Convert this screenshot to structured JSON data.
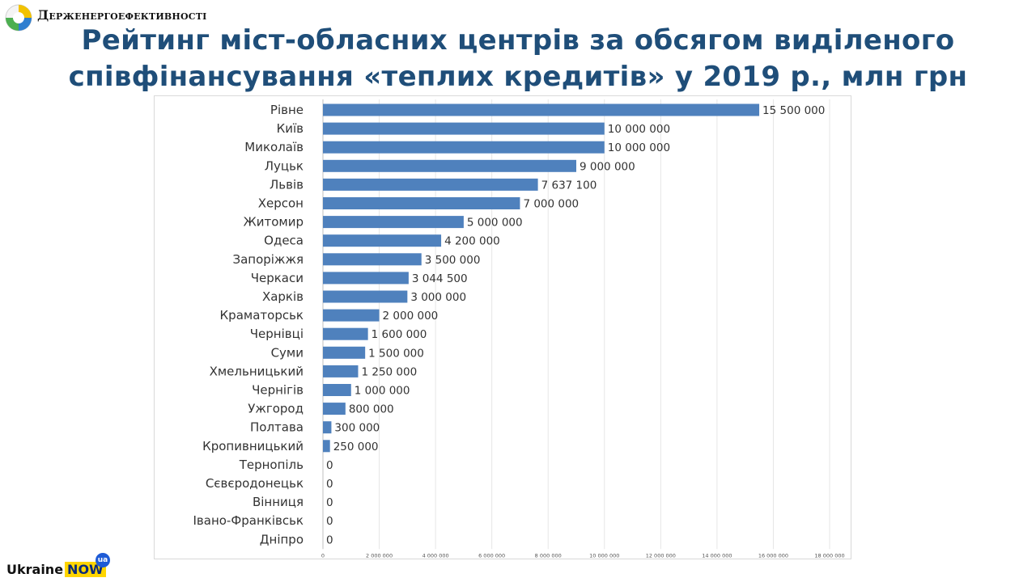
{
  "header": {
    "org_name": "Держенергоефективності",
    "title_line1": "Рейтинг міст-обласних центрів за обсягом виділеного",
    "title_line2": "співфінансування «теплих кредитів» у 2019 р., млн грн"
  },
  "footer": {
    "brand_text": "Ukraine",
    "brand_highlight": "NOW",
    "brand_badge": "ua"
  },
  "colors": {
    "title": "#1f4e79",
    "bar": "#4f81bd",
    "grid": "#e6e6e6"
  },
  "chart_data": {
    "type": "bar",
    "orientation": "horizontal",
    "title": "",
    "xlabel": "",
    "ylabel": "",
    "xlim": [
      0,
      18000000
    ],
    "grid": true,
    "categories": [
      "Рівне",
      "Київ",
      "Миколаїв",
      "Луцьк",
      "Львів",
      "Херсон",
      "Житомир",
      "Одеса",
      "Запоріжжя",
      "Черкаси",
      "Харків",
      "Краматорськ",
      "Чернівці",
      "Суми",
      "Хмельницький",
      "Чернігів",
      "Ужгород",
      "Полтава",
      "Кропивницький",
      "Тернопіль",
      "Сєвєродонецьк",
      "Вінниця",
      "Івано-Франківськ",
      "Дніпро"
    ],
    "values": [
      15500000,
      10000000,
      10000000,
      9000000,
      7637100,
      7000000,
      5000000,
      4200000,
      3500000,
      3044500,
      3000000,
      2000000,
      1600000,
      1500000,
      1250000,
      1000000,
      800000,
      300000,
      250000,
      0,
      0,
      0,
      0,
      0
    ],
    "value_labels": [
      "15 500 000",
      "10 000 000",
      "10 000 000",
      "9 000 000",
      "7 637 100",
      "7 000 000",
      "5 000 000",
      "4 200 000",
      "3 500 000",
      "3 044 500",
      "3 000 000",
      "2 000 000",
      "1 600 000",
      "1 500 000",
      "1 250 000",
      "1 000 000",
      "800 000",
      "300 000",
      "250 000",
      "0",
      "0",
      "0",
      "0",
      "0"
    ],
    "ticks": [
      0,
      2000000,
      4000000,
      6000000,
      8000000,
      10000000,
      12000000,
      14000000,
      16000000,
      18000000
    ],
    "tick_labels": [
      "0",
      "2 000 000",
      "4 000 000",
      "6 000 000",
      "8 000 000",
      "10 000 000",
      "12 000 000",
      "14 000 000",
      "16 000 000",
      "18 000 000"
    ]
  }
}
